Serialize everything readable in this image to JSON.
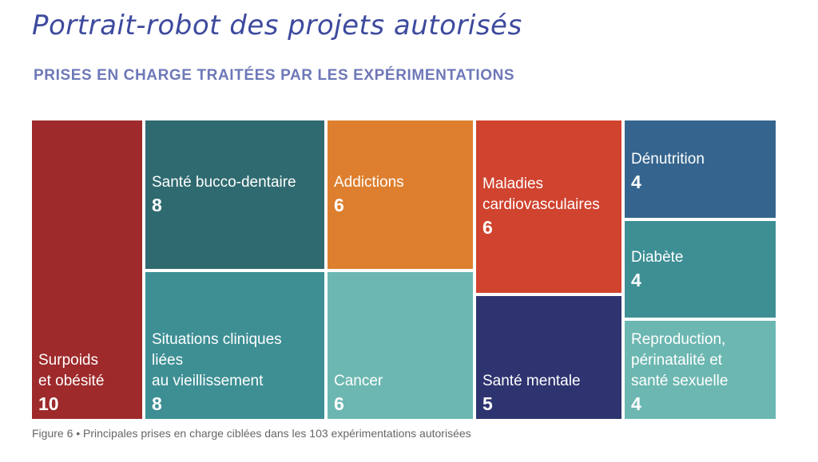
{
  "title": "Portrait-robot des projets autorisés",
  "subtitle": "PRISES EN CHARGE TRAITÉES PAR LES EXPÉRIMENTATIONS",
  "caption": "Figure 6 • Principales prises en charge ciblées dans les 103 expérimentations autorisées",
  "chart_data": {
    "type": "treemap",
    "title": "PRISES EN CHARGE TRAITÉES PAR LES EXPÉRIMENTATIONS",
    "items": [
      {
        "label": "Surpoids\net obésité",
        "value": 10,
        "color": "#9e2a2b"
      },
      {
        "label": "Santé bucco-dentaire",
        "value": 8,
        "color": "#2f6a70"
      },
      {
        "label": "Situations cliniques\nliées\nau vieillissement",
        "value": 8,
        "color": "#3d8f94"
      },
      {
        "label": "Addictions",
        "value": 6,
        "color": "#dd7f2e"
      },
      {
        "label": "Cancer",
        "value": 6,
        "color": "#6cb7b1"
      },
      {
        "label": "Maladies\ncardiovasculaires",
        "value": 6,
        "color": "#d0432f"
      },
      {
        "label": "Santé mentale",
        "value": 5,
        "color": "#2e3470"
      },
      {
        "label": "Dénutrition",
        "value": 4,
        "color": "#35658e"
      },
      {
        "label": "Diabète",
        "value": 4,
        "color": "#3d8f94"
      },
      {
        "label": "Reproduction,\npérinatalité et\nsanté sexuelle",
        "value": 4,
        "color": "#6cb7b1"
      }
    ]
  }
}
